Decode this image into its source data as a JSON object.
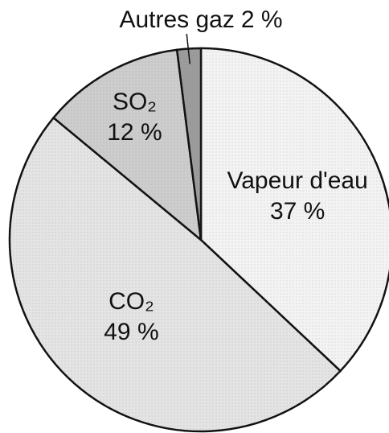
{
  "chart_data": {
    "type": "pie",
    "categories": [
      "Vapeur d'eau",
      "CO₂",
      "SO₂",
      "Autres gaz"
    ],
    "values": [
      37,
      49,
      12,
      2
    ],
    "value_labels": [
      "37 %",
      "49 %",
      "12 %",
      "2 %"
    ],
    "colors": [
      "#f3f3f3",
      "#e4e4e4",
      "#cdcdcd",
      "#9c9c9c"
    ]
  }
}
